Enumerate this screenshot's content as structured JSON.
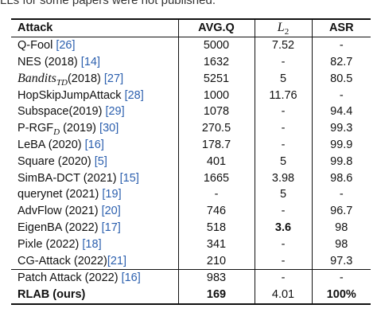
{
  "caption_fragment": "LLs for some papers were not published.",
  "headers": {
    "attack": "Attack",
    "avgq": "AVG.Q",
    "l2_base": "L",
    "l2_sub": "2",
    "asr": "ASR"
  },
  "rows": [
    {
      "name_pre": "Q-Fool ",
      "ref": "[26]",
      "name_post": "",
      "avgq": "5000",
      "l2": "7.52",
      "asr": "-"
    },
    {
      "name_pre": "NES (2018) ",
      "ref": "[14]",
      "name_post": "",
      "avgq": "1632",
      "l2": "-",
      "asr": "82.7"
    },
    {
      "name_main": "Bandits",
      "name_sub": "TD",
      "name_year": "(2018)",
      "ref": "[27]",
      "avgq": "5251",
      "l2": "5",
      "asr": "80.5"
    },
    {
      "name_pre": "HopSkipJumpAttack ",
      "ref": "[28]",
      "name_post": "",
      "avgq": "1000",
      "l2": "11.76",
      "asr": "-"
    },
    {
      "name_pre": "Subspace(2019) ",
      "ref": "[29]",
      "name_post": "",
      "avgq": "1078",
      "l2": "-",
      "asr": "94.4"
    },
    {
      "name_main": "P-RGF",
      "name_sub": "D",
      "name_year": " (2019)",
      "ref": "[30]",
      "avgq": "270.5",
      "l2": "-",
      "asr": "99.3"
    },
    {
      "name_pre": "LeBA (2020) ",
      "ref": "[16]",
      "name_post": "",
      "avgq": "178.7",
      "l2": "-",
      "asr": "99.9"
    },
    {
      "name_pre": "Square (2020) ",
      "ref": "[5]",
      "name_post": "",
      "avgq": "401",
      "l2": "5",
      "asr": "99.8"
    },
    {
      "name_pre": "SimBA-DCT (2021) ",
      "ref": "[15]",
      "name_post": "",
      "avgq": "1665",
      "l2": "3.98",
      "asr": "98.6"
    },
    {
      "name_pre": "querynet (2021) ",
      "ref": "[19]",
      "name_post": "",
      "avgq": "-",
      "l2": "5",
      "asr": "-"
    },
    {
      "name_pre": "AdvFlow (2021) ",
      "ref": "[20]",
      "name_post": "",
      "avgq": "746",
      "l2": "-",
      "asr": "96.7"
    },
    {
      "name_pre": "EigenBA (2022) ",
      "ref": "[17]",
      "name_post": "",
      "avgq": "518",
      "l2": "3.6",
      "asr": "98"
    },
    {
      "name_pre": "Pixle (2022) ",
      "ref": "[18]",
      "name_post": "",
      "avgq": "341",
      "l2": "-",
      "asr": "98"
    },
    {
      "name_pre": "CG-Attack (2022)",
      "ref": "[21]",
      "name_post": "",
      "avgq": "210",
      "l2": "-",
      "asr": "97.3"
    }
  ],
  "lower_rows": [
    {
      "name_pre": "Patch Attack (2022) ",
      "ref": "[16]",
      "name_post": "",
      "avgq": "983",
      "l2": "-",
      "asr": "-"
    },
    {
      "name_pre": "RLAB (ours)",
      "ref": "",
      "name_post": "",
      "avgq": "169",
      "l2": "4.01",
      "asr": "100%"
    }
  ],
  "colors": {
    "ref_link": "#2b5fae",
    "rules": "#111111"
  }
}
